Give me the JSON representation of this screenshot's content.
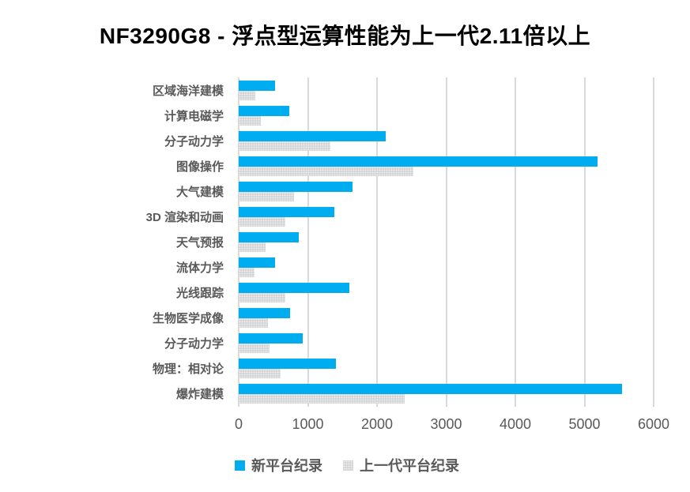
{
  "title": "NF3290G8 - 浮点型运算性能为上一代2.11倍以上",
  "colors": {
    "new_platform": "#00aeef",
    "prev_platform": "#d4d4d4",
    "gridline": "#d9d9d9",
    "label_text": "#595959",
    "title_text": "#000000"
  },
  "chart_data": {
    "type": "bar",
    "orientation": "horizontal",
    "title": "NF3290G8 - 浮点型运算性能为上一代2.11倍以上",
    "categories": [
      "区域海洋建模",
      "计算电磁学",
      "分子动力学",
      "图像操作",
      "大气建模",
      "3D 渲染和动画",
      "天气预报",
      "流体力学",
      "光线跟踪",
      "生物医学成像",
      "分子动力学",
      "物理：相对论",
      "爆炸建模"
    ],
    "series": [
      {
        "name": "新平台纪录",
        "color": "#00aeef",
        "values": [
          520,
          730,
          2120,
          5190,
          1650,
          1380,
          870,
          530,
          1600,
          740,
          930,
          1400,
          5540
        ]
      },
      {
        "name": "上一代平台纪录",
        "color": "#d4d4d4",
        "values": [
          240,
          320,
          1320,
          2520,
          800,
          670,
          390,
          230,
          670,
          420,
          450,
          610,
          2400
        ]
      }
    ],
    "xlabel": "",
    "ylabel": "",
    "xlim": [
      0,
      6000
    ],
    "xticks": [
      0,
      1000,
      2000,
      3000,
      4000,
      5000,
      6000
    ],
    "grid": true,
    "legend_position": "bottom-left"
  }
}
